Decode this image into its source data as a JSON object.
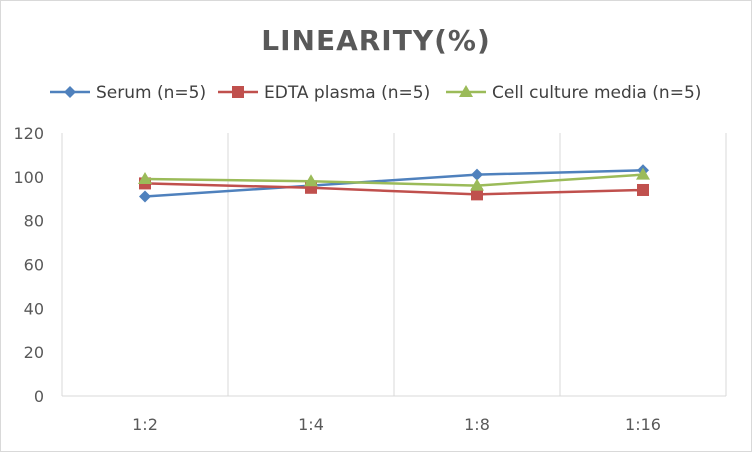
{
  "chart_data": {
    "type": "line",
    "title": "LINEARITY(%)",
    "xlabel": "",
    "ylabel": "",
    "categories": [
      "1:2",
      "1:4",
      "1:8",
      "1:16"
    ],
    "yticks": [
      "0",
      "20",
      "40",
      "60",
      "80",
      "100",
      "120"
    ],
    "ylim": [
      0,
      120
    ],
    "grid": "vertical",
    "legend_position": "top",
    "series": [
      {
        "name": "Serum (n=5)",
        "values": [
          91,
          96,
          101,
          103
        ],
        "color": "#4f81bd",
        "marker": "diamond"
      },
      {
        "name": "EDTA plasma (n=5)",
        "values": [
          97,
          95,
          92,
          94
        ],
        "color": "#c0504d",
        "marker": "square"
      },
      {
        "name": "Cell culture media (n=5)",
        "values": [
          99,
          98,
          96,
          101
        ],
        "color": "#9bbb59",
        "marker": "triangle"
      }
    ]
  }
}
